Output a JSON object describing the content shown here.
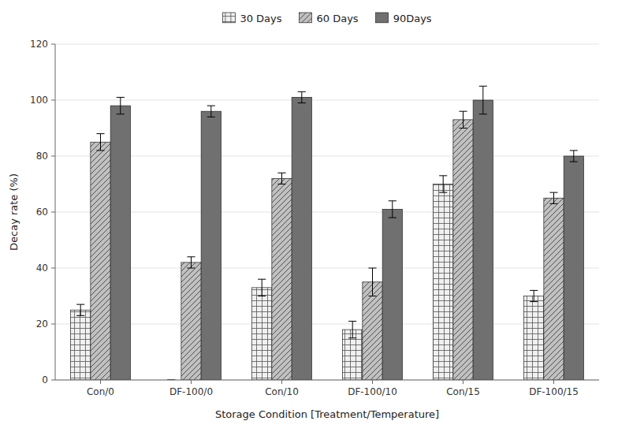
{
  "chart_data": {
    "type": "bar",
    "categories": [
      "Con/0",
      "DF-100/0",
      "Con/10",
      "DF-100/10",
      "Con/15",
      "DF-100/15"
    ],
    "series": [
      {
        "name": "30 Days",
        "color": "#f0f0f0",
        "values": [
          25,
          0,
          33,
          18,
          70,
          30
        ],
        "errors": [
          2,
          0,
          3,
          3,
          3,
          2
        ]
      },
      {
        "name": "60 Days",
        "color": "#c0c0c0",
        "values": [
          85,
          42,
          72,
          35,
          93,
          65
        ],
        "errors": [
          3,
          2,
          2,
          5,
          3,
          2
        ]
      },
      {
        "name": "90Days",
        "color": "#707070",
        "values": [
          98,
          96,
          101,
          61,
          100,
          80
        ],
        "errors": [
          3,
          2,
          2,
          3,
          5,
          2
        ]
      }
    ],
    "xlabel": "Storage Condition [Treatment/Temperature]",
    "ylabel": "Decay rate (%)",
    "ylim": [
      0,
      120
    ],
    "yticks": [
      0,
      20,
      40,
      60,
      80,
      100,
      120
    ],
    "grid": true,
    "legend": "top"
  }
}
